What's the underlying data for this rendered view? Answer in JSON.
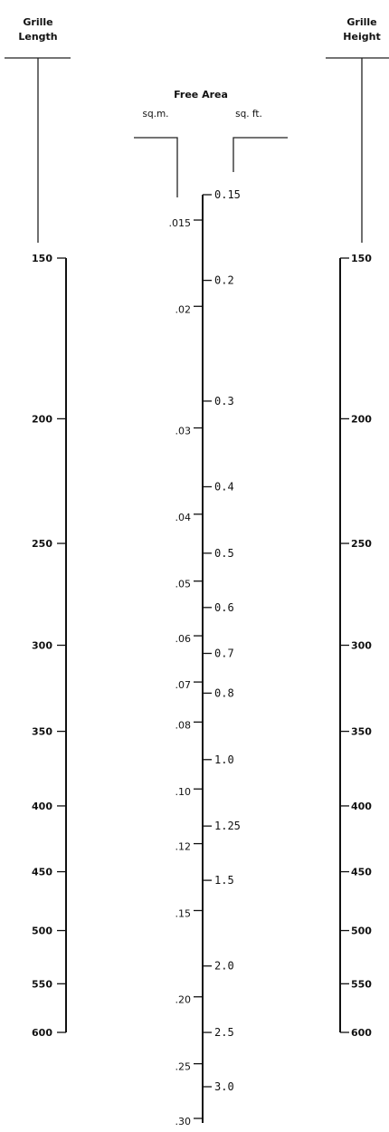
{
  "headers": {
    "length_line1": "Grille",
    "length_line2": "Length",
    "height_line1": "Grille",
    "height_line2": "Height",
    "free_area": "Free Area",
    "sqm": "sq.m.",
    "sqft": "sq. ft."
  },
  "scales": {
    "length": {
      "min": 150,
      "max": 600,
      "ticks": [
        {
          "label": "150",
          "value": 150
        },
        {
          "label": "200",
          "value": 200
        },
        {
          "label": "250",
          "value": 250
        },
        {
          "label": "300",
          "value": 300
        },
        {
          "label": "350",
          "value": 350
        },
        {
          "label": "400",
          "value": 400
        },
        {
          "label": "450",
          "value": 450
        },
        {
          "label": "500",
          "value": 500
        },
        {
          "label": "550",
          "value": 550
        },
        {
          "label": "600",
          "value": 600
        }
      ]
    },
    "height": {
      "min": 150,
      "max": 600,
      "ticks": [
        {
          "label": "150",
          "value": 150
        },
        {
          "label": "200",
          "value": 200
        },
        {
          "label": "250",
          "value": 250
        },
        {
          "label": "300",
          "value": 300
        },
        {
          "label": "350",
          "value": 350
        },
        {
          "label": "400",
          "value": 400
        },
        {
          "label": "450",
          "value": 450
        },
        {
          "label": "500",
          "value": 500
        },
        {
          "label": "550",
          "value": 550
        },
        {
          "label": "600",
          "value": 600
        }
      ]
    },
    "sqm": {
      "min": 0.015,
      "max": 0.3,
      "ticks": [
        {
          "label": ".015",
          "value": 0.015
        },
        {
          "label": ".02",
          "value": 0.02
        },
        {
          "label": ".03",
          "value": 0.03
        },
        {
          "label": ".04",
          "value": 0.04
        },
        {
          "label": ".05",
          "value": 0.05
        },
        {
          "label": ".06",
          "value": 0.06
        },
        {
          "label": ".07",
          "value": 0.07
        },
        {
          "label": ".08",
          "value": 0.08
        },
        {
          "label": ".10",
          "value": 0.1
        },
        {
          "label": ".12",
          "value": 0.12
        },
        {
          "label": ".15",
          "value": 0.15
        },
        {
          "label": ".20",
          "value": 0.2
        },
        {
          "label": ".25",
          "value": 0.25
        },
        {
          "label": ".30",
          "value": 0.3
        }
      ]
    },
    "sqft": {
      "min": 0.15,
      "max": 3.0,
      "ticks": [
        {
          "label": "0.15",
          "value": 0.15
        },
        {
          "label": "0.2",
          "value": 0.2
        },
        {
          "label": "0.3",
          "value": 0.3
        },
        {
          "label": "0.4",
          "value": 0.4
        },
        {
          "label": "0.5",
          "value": 0.5
        },
        {
          "label": "0.6",
          "value": 0.6
        },
        {
          "label": "0.7",
          "value": 0.7
        },
        {
          "label": "0.8",
          "value": 0.8
        },
        {
          "label": "1.0",
          "value": 1.0
        },
        {
          "label": "1.25",
          "value": 1.25
        },
        {
          "label": "1.5",
          "value": 1.5
        },
        {
          "label": "2.0",
          "value": 2.0
        },
        {
          "label": "2.5",
          "value": 2.5
        },
        {
          "label": "3.0",
          "value": 3.0
        }
      ]
    }
  }
}
